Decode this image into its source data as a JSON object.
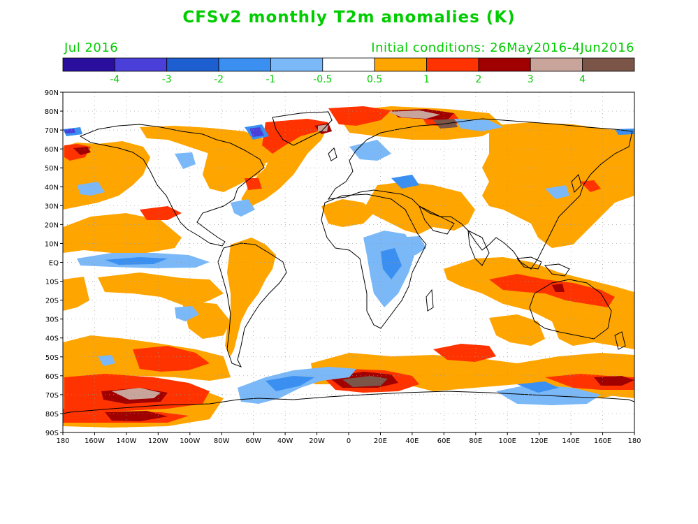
{
  "title": "CFSv2 monthly T2m anomalies (K)",
  "valid_month": "Jul 2016",
  "initial_conditions": "Initial conditions: 26May2016-4Jun2016",
  "text_color": "#00cc00",
  "colorbar": {
    "colors": [
      "#2a0f9e",
      "#4a3fd8",
      "#1d5fd0",
      "#3a8ff0",
      "#7ab8f8",
      "#ffffff",
      "#ffa500",
      "#ff3300",
      "#a00000",
      "#c9a49a",
      "#7a5548"
    ],
    "labels": [
      "-4",
      "-3",
      "-2",
      "-1",
      "-0.5",
      "0.5",
      "1",
      "2",
      "3",
      "4"
    ]
  },
  "map": {
    "lat_labels": [
      "90N",
      "80N",
      "70N",
      "60N",
      "50N",
      "40N",
      "30N",
      "20N",
      "10N",
      "EQ",
      "10S",
      "20S",
      "30S",
      "40S",
      "50S",
      "60S",
      "70S",
      "80S",
      "90S"
    ],
    "lon_labels": [
      "180",
      "160W",
      "140W",
      "120W",
      "100W",
      "80W",
      "60W",
      "40W",
      "20W",
      "0",
      "20E",
      "40E",
      "60E",
      "80E",
      "100E",
      "120E",
      "140E",
      "160E",
      "180"
    ]
  }
}
